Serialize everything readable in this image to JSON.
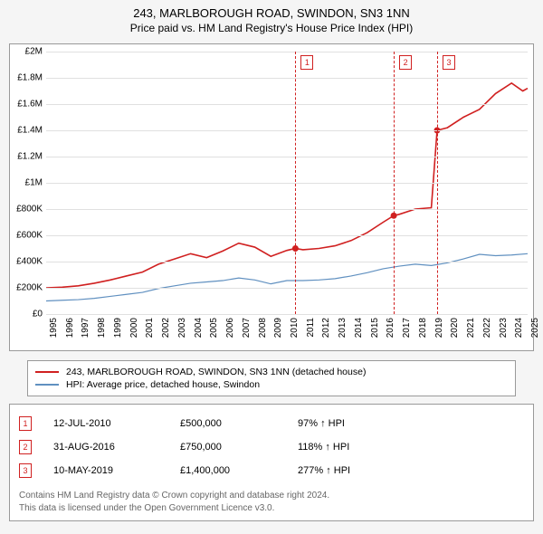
{
  "title": "243, MARLBOROUGH ROAD, SWINDON, SN3 1NN",
  "subtitle": "Price paid vs. HM Land Registry's House Price Index (HPI)",
  "chart": {
    "type": "line",
    "background_color": "#ffffff",
    "grid_color": "#e0e0e0",
    "border_color": "#999999",
    "xlim": [
      1995,
      2025
    ],
    "ylim": [
      0,
      2000000
    ],
    "ytick_step": 200000,
    "yticks": [
      {
        "v": 0,
        "label": "£0"
      },
      {
        "v": 200000,
        "label": "£200K"
      },
      {
        "v": 400000,
        "label": "£400K"
      },
      {
        "v": 600000,
        "label": "£600K"
      },
      {
        "v": 800000,
        "label": "£800K"
      },
      {
        "v": 1000000,
        "label": "£1M"
      },
      {
        "v": 1200000,
        "label": "£1.2M"
      },
      {
        "v": 1400000,
        "label": "£1.4M"
      },
      {
        "v": 1600000,
        "label": "£1.6M"
      },
      {
        "v": 1800000,
        "label": "£1.8M"
      },
      {
        "v": 2000000,
        "label": "£2M"
      }
    ],
    "xticks": [
      1995,
      1996,
      1997,
      1998,
      1999,
      2000,
      2001,
      2002,
      2003,
      2004,
      2005,
      2006,
      2007,
      2008,
      2009,
      2010,
      2011,
      2012,
      2013,
      2014,
      2015,
      2016,
      2017,
      2018,
      2019,
      2020,
      2021,
      2022,
      2023,
      2024,
      2025
    ],
    "series": [
      {
        "name": "243, MARLBOROUGH ROAD, SWINDON, SN3 1NN (detached house)",
        "color": "#d02020",
        "line_width": 1.6,
        "data": [
          [
            1995,
            200000
          ],
          [
            1996,
            205000
          ],
          [
            1997,
            215000
          ],
          [
            1998,
            235000
          ],
          [
            1999,
            260000
          ],
          [
            2000,
            290000
          ],
          [
            2001,
            320000
          ],
          [
            2002,
            380000
          ],
          [
            2003,
            420000
          ],
          [
            2004,
            460000
          ],
          [
            2005,
            430000
          ],
          [
            2006,
            480000
          ],
          [
            2007,
            540000
          ],
          [
            2008,
            510000
          ],
          [
            2009,
            440000
          ],
          [
            2010,
            485000
          ],
          [
            2010.53,
            500000
          ],
          [
            2011,
            490000
          ],
          [
            2012,
            500000
          ],
          [
            2013,
            520000
          ],
          [
            2014,
            560000
          ],
          [
            2015,
            620000
          ],
          [
            2016,
            700000
          ],
          [
            2016.66,
            750000
          ],
          [
            2017,
            760000
          ],
          [
            2018,
            800000
          ],
          [
            2019,
            810000
          ],
          [
            2019.36,
            1400000
          ],
          [
            2020,
            1420000
          ],
          [
            2021,
            1500000
          ],
          [
            2022,
            1560000
          ],
          [
            2023,
            1680000
          ],
          [
            2024,
            1760000
          ],
          [
            2024.7,
            1700000
          ],
          [
            2025,
            1720000
          ]
        ]
      },
      {
        "name": "HPI: Average price, detached house, Swindon",
        "color": "#6090c0",
        "line_width": 1.2,
        "data": [
          [
            1995,
            100000
          ],
          [
            1996,
            105000
          ],
          [
            1997,
            110000
          ],
          [
            1998,
            120000
          ],
          [
            1999,
            135000
          ],
          [
            2000,
            150000
          ],
          [
            2001,
            165000
          ],
          [
            2002,
            195000
          ],
          [
            2003,
            215000
          ],
          [
            2004,
            235000
          ],
          [
            2005,
            245000
          ],
          [
            2006,
            255000
          ],
          [
            2007,
            275000
          ],
          [
            2008,
            260000
          ],
          [
            2009,
            230000
          ],
          [
            2010,
            255000
          ],
          [
            2011,
            255000
          ],
          [
            2012,
            260000
          ],
          [
            2013,
            270000
          ],
          [
            2014,
            290000
          ],
          [
            2015,
            315000
          ],
          [
            2016,
            345000
          ],
          [
            2017,
            365000
          ],
          [
            2018,
            380000
          ],
          [
            2019,
            370000
          ],
          [
            2020,
            390000
          ],
          [
            2021,
            420000
          ],
          [
            2022,
            455000
          ],
          [
            2023,
            445000
          ],
          [
            2024,
            450000
          ],
          [
            2025,
            460000
          ]
        ]
      }
    ],
    "markers": [
      {
        "n": "1",
        "x": 2010.53,
        "y": 500000,
        "color": "#d02020"
      },
      {
        "n": "2",
        "x": 2016.66,
        "y": 750000,
        "color": "#d02020"
      },
      {
        "n": "3",
        "x": 2019.36,
        "y": 1400000,
        "color": "#d02020"
      }
    ],
    "marker_radius": 3.5
  },
  "legend": {
    "items": [
      {
        "label": "243, MARLBOROUGH ROAD, SWINDON, SN3 1NN (detached house)",
        "color": "#d02020"
      },
      {
        "label": "HPI: Average price, detached house, Swindon",
        "color": "#6090c0"
      }
    ]
  },
  "events": [
    {
      "n": "1",
      "date": "12-JUL-2010",
      "price": "£500,000",
      "hpi": "97% ↑ HPI"
    },
    {
      "n": "2",
      "date": "31-AUG-2016",
      "price": "£750,000",
      "hpi": "118% ↑ HPI"
    },
    {
      "n": "3",
      "date": "10-MAY-2019",
      "price": "£1,400,000",
      "hpi": "277% ↑ HPI"
    }
  ],
  "credit_line1": "Contains HM Land Registry data © Crown copyright and database right 2024.",
  "credit_line2": "This data is licensed under the Open Government Licence v3.0."
}
